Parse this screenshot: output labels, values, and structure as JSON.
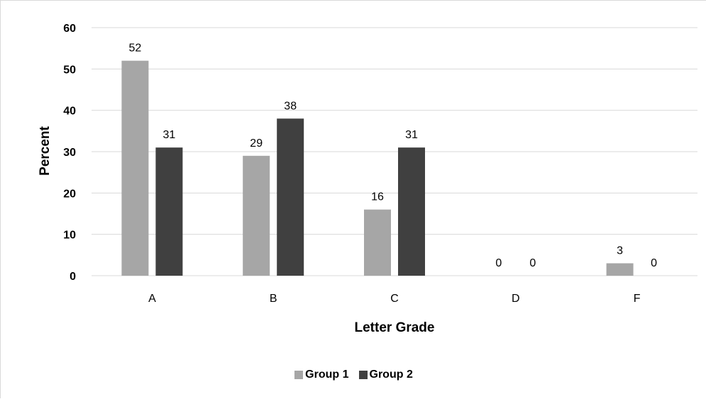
{
  "chart_data": {
    "type": "bar",
    "categories": [
      "A",
      "B",
      "C",
      "D",
      "F"
    ],
    "series": [
      {
        "name": "Group 1",
        "values": [
          52,
          29,
          16,
          0,
          3
        ],
        "color": "#a6a6a6"
      },
      {
        "name": "Group 2",
        "values": [
          31,
          38,
          31,
          0,
          0
        ],
        "color": "#404040"
      }
    ],
    "xlabel": "Letter Grade",
    "ylabel": "Percent",
    "ylim": [
      0,
      60
    ],
    "yticks": [
      0,
      10,
      20,
      30,
      40,
      50,
      60
    ],
    "grid": true,
    "legend_position": "bottom",
    "gridline_color": "#d9d9d9"
  }
}
